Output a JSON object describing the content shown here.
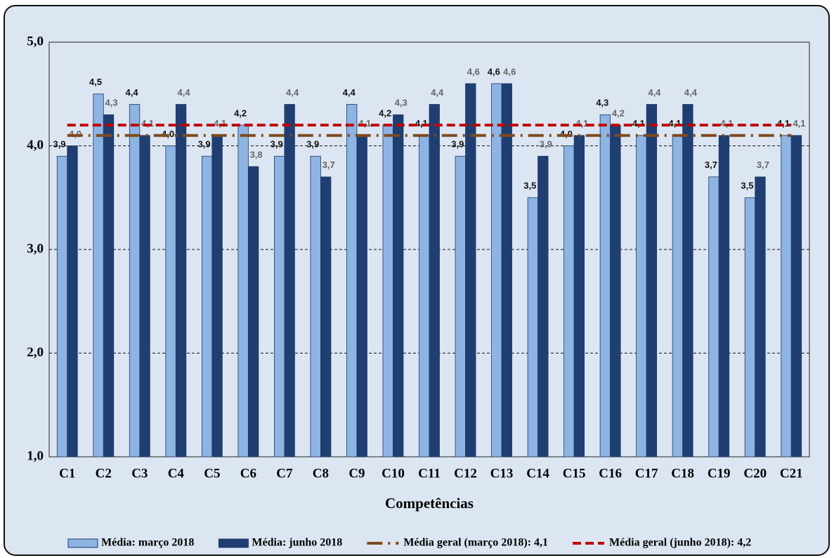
{
  "chart_data": {
    "type": "bar",
    "x_label": "Competências",
    "categories": [
      "C1",
      "C2",
      "C3",
      "C4",
      "C5",
      "C6",
      "C7",
      "C8",
      "C9",
      "C10",
      "C11",
      "C12",
      "C13",
      "C14",
      "C15",
      "C16",
      "C17",
      "C18",
      "C19",
      "C20",
      "C21"
    ],
    "series": [
      {
        "name": "Média: março 2018",
        "color": "#8db4e2",
        "values": [
          3.9,
          4.5,
          4.4,
          4.0,
          3.9,
          4.2,
          3.9,
          3.9,
          4.4,
          4.2,
          4.1,
          3.9,
          4.6,
          3.5,
          4.0,
          4.3,
          4.1,
          4.1,
          3.7,
          3.5,
          4.1
        ],
        "value_labels": [
          "3,9",
          "4,5",
          "4,4",
          "4,0",
          "3,9",
          "4,2",
          "3,9",
          "3,9",
          "4,4",
          "4,2",
          "4,1",
          "3,9",
          "4,6",
          "3,5",
          "4,0",
          "4,3",
          "4,1",
          "4,1",
          "3,7",
          "3,5",
          "4,1"
        ]
      },
      {
        "name": "Média: junho 2018",
        "color": "#1f3f73",
        "values": [
          4.0,
          4.3,
          4.1,
          4.4,
          4.1,
          3.8,
          4.4,
          3.7,
          4.1,
          4.3,
          4.4,
          4.6,
          4.6,
          3.9,
          4.1,
          4.2,
          4.4,
          4.4,
          4.1,
          3.7,
          4.1
        ],
        "value_labels": [
          "4,0",
          "4,3",
          "4,1",
          "4,4",
          "4,1",
          "3,8",
          "4,4",
          "3,7",
          "4,1",
          "4,3",
          "4,4",
          "4,6",
          "4,6",
          "3,9",
          "4,1",
          "4,2",
          "4,4",
          "4,4",
          "4,1",
          "3,7",
          "4,1"
        ]
      }
    ],
    "reference_lines": [
      {
        "name": "Média geral (março 2018): 4,1",
        "value": 4.1,
        "color": "#7f4a1c",
        "style": "dash-dot"
      },
      {
        "name": "Média geral (junho 2018): 4,2",
        "value": 4.2,
        "color": "#c00000",
        "style": "dashed"
      }
    ],
    "ylim": [
      1,
      5
    ],
    "yticks": [
      {
        "value": 1,
        "label": "1,0"
      },
      {
        "value": 2,
        "label": "2,0"
      },
      {
        "value": 3,
        "label": "3,0"
      },
      {
        "value": 4,
        "label": "4,0"
      },
      {
        "value": 5,
        "label": "5,0"
      }
    ],
    "grid": true,
    "legend": "bottom"
  }
}
